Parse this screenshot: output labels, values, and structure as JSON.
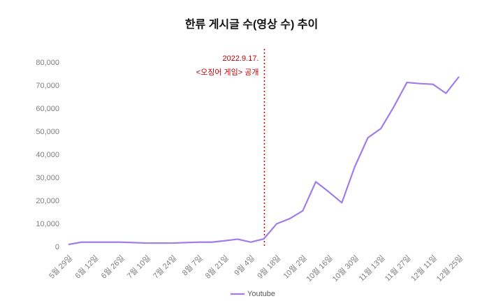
{
  "chart_data": {
    "type": "line",
    "title": "한류 게시글 수(영상 수) 추이",
    "annotation": [
      "2022.9.17.",
      "<오징어 게임> 공개"
    ],
    "categories": [
      "5월 29일",
      null,
      "6월 12일",
      null,
      "6월 26일",
      null,
      "7월 10일",
      null,
      "7월 24일",
      null,
      "8월 7일",
      null,
      "8월 21일",
      null,
      "9월 4일",
      null,
      "9월 18일",
      null,
      "10월 2일",
      null,
      "10월 16일",
      null,
      "10월 30일",
      null,
      "11월 13일",
      null,
      "11월 27일",
      null,
      "12월 11일",
      null,
      "12월 25일"
    ],
    "series": [
      {
        "name": "Youtube",
        "color": "#a07de9",
        "values": [
          1200,
          2200,
          2200,
          2200,
          2200,
          2000,
          1800,
          1800,
          1800,
          2000,
          2200,
          2200,
          2800,
          3500,
          2200,
          3600,
          10200,
          12400,
          15800,
          28400,
          24000,
          19300,
          35000,
          47500,
          51500,
          61000,
          71500,
          71000,
          70700,
          66800,
          74000
        ]
      }
    ],
    "ylim": [
      0,
      80000
    ],
    "yticks": [
      0,
      {
        "value": 10000,
        "label": "10,000"
      },
      {
        "value": 20000,
        "label": "20,000"
      },
      {
        "value": 30000,
        "label": "30,000"
      },
      {
        "value": 40000,
        "label": "40,000"
      },
      {
        "value": 50000,
        "label": "50,000"
      },
      {
        "value": 60000,
        "label": "60,000"
      },
      {
        "value": 70000,
        "label": "70,000"
      },
      {
        "value": 80000,
        "label": "80,000"
      }
    ],
    "grid": false,
    "legend": "bottom"
  }
}
